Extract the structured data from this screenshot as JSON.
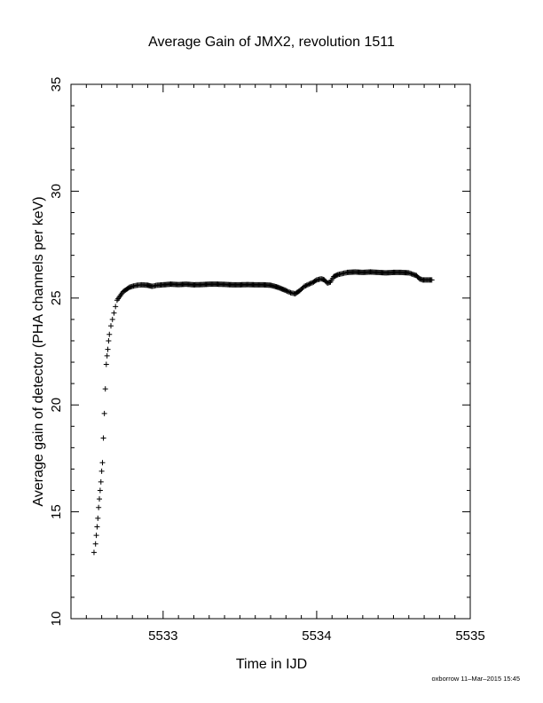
{
  "chart_data": {
    "type": "scatter",
    "title": "Average Gain of JMX2, revolution 1511",
    "xlabel": "Time in IJD",
    "ylabel": "Average gain of detector (PHA channels per keV)",
    "xlim": [
      5532.4,
      5535.0
    ],
    "ylim": [
      10,
      35
    ],
    "xticks": [
      5533,
      5534,
      5535
    ],
    "yticks": [
      10,
      15,
      20,
      25,
      30,
      35
    ],
    "marker": "plus",
    "grid": false,
    "series": [
      {
        "points": [
          [
            5532.55,
            13.1
          ],
          [
            5532.56,
            13.5
          ],
          [
            5532.565,
            13.9
          ],
          [
            5532.57,
            14.3
          ],
          [
            5532.575,
            14.7
          ],
          [
            5532.58,
            15.2
          ],
          [
            5532.585,
            15.6
          ],
          [
            5532.59,
            16.0
          ],
          [
            5532.595,
            16.4
          ],
          [
            5532.6,
            16.9
          ],
          [
            5532.605,
            17.3
          ],
          [
            5532.63,
            21.9
          ],
          [
            5532.635,
            22.3
          ],
          [
            5532.64,
            22.6
          ],
          [
            5532.645,
            23.0
          ],
          [
            5532.65,
            23.3
          ],
          [
            5532.66,
            23.7
          ],
          [
            5532.67,
            24.0
          ],
          [
            5532.68,
            24.3
          ],
          [
            5532.69,
            24.6
          ],
          [
            5532.7,
            24.9
          ],
          [
            5532.72,
            25.1
          ],
          [
            5532.74,
            25.3
          ],
          [
            5532.76,
            25.4
          ],
          [
            5532.78,
            25.5
          ],
          [
            5532.8,
            25.55
          ],
          [
            5532.83,
            25.6
          ],
          [
            5532.86,
            25.62
          ],
          [
            5532.9,
            25.6
          ],
          [
            5532.93,
            25.55
          ],
          [
            5532.96,
            25.6
          ],
          [
            5533.0,
            25.62
          ],
          [
            5533.05,
            25.65
          ],
          [
            5533.1,
            25.63
          ],
          [
            5533.15,
            25.65
          ],
          [
            5533.2,
            25.62
          ],
          [
            5533.25,
            25.63
          ],
          [
            5533.3,
            25.65
          ],
          [
            5533.35,
            25.65
          ],
          [
            5533.4,
            25.64
          ],
          [
            5533.45,
            25.62
          ],
          [
            5533.5,
            25.62
          ],
          [
            5533.55,
            25.63
          ],
          [
            5533.6,
            25.62
          ],
          [
            5533.65,
            25.62
          ],
          [
            5533.7,
            25.6
          ],
          [
            5533.75,
            25.5
          ],
          [
            5533.8,
            25.35
          ],
          [
            5533.83,
            25.25
          ],
          [
            5533.86,
            25.2
          ],
          [
            5533.89,
            25.35
          ],
          [
            5533.92,
            25.55
          ],
          [
            5533.95,
            25.65
          ],
          [
            5533.98,
            25.75
          ],
          [
            5534.0,
            25.85
          ],
          [
            5534.03,
            25.9
          ],
          [
            5534.05,
            25.85
          ],
          [
            5534.07,
            25.7
          ],
          [
            5534.09,
            25.75
          ],
          [
            5534.11,
            26.0
          ],
          [
            5534.14,
            26.1
          ],
          [
            5534.17,
            26.15
          ],
          [
            5534.2,
            26.2
          ],
          [
            5534.25,
            26.22
          ],
          [
            5534.3,
            26.2
          ],
          [
            5534.35,
            26.22
          ],
          [
            5534.4,
            26.2
          ],
          [
            5534.45,
            26.18
          ],
          [
            5534.5,
            26.2
          ],
          [
            5534.55,
            26.2
          ],
          [
            5534.6,
            26.18
          ],
          [
            5534.63,
            26.1
          ],
          [
            5534.65,
            26.05
          ],
          [
            5534.67,
            25.9
          ],
          [
            5534.69,
            25.85
          ],
          [
            5534.71,
            25.85
          ],
          [
            5534.73,
            25.85
          ],
          [
            5534.75,
            25.85
          ]
        ]
      }
    ]
  },
  "footer": "oxborrow 11–Mar–2015 15:45"
}
